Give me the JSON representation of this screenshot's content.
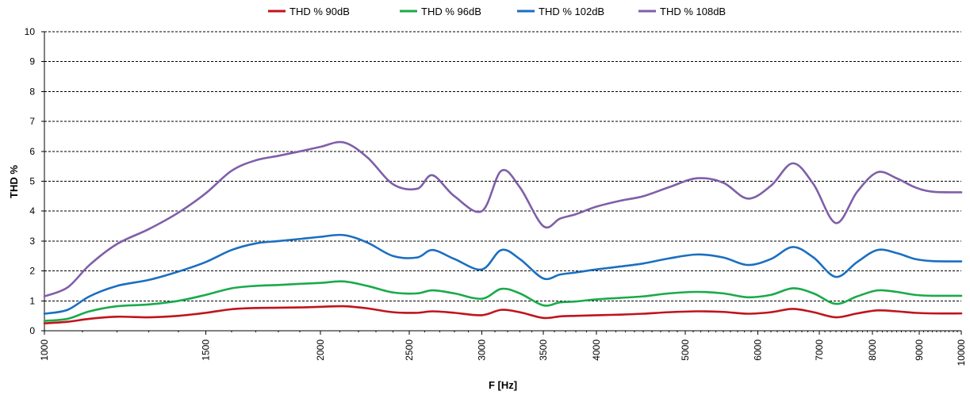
{
  "chart_data": {
    "type": "line",
    "xlabel": "F [Hz]",
    "ylabel": "THD %",
    "x_scale": "log",
    "xlim": [
      1000,
      10000
    ],
    "ylim": [
      0,
      10
    ],
    "x_ticks": [
      1000,
      1500,
      2000,
      2500,
      3000,
      3500,
      4000,
      5000,
      6000,
      7000,
      8000,
      9000,
      10000
    ],
    "x_tick_labels": [
      "1000",
      "1500",
      "2000",
      "2500",
      "3000",
      "3500",
      "4000",
      "5000",
      "6000",
      "7000",
      "8000",
      "9000",
      "10000"
    ],
    "y_ticks": [
      0,
      1,
      2,
      3,
      4,
      5,
      6,
      7,
      8,
      9,
      10
    ],
    "y_tick_labels": [
      "0",
      "1",
      "2",
      "3",
      "4",
      "5",
      "6",
      "7",
      "8",
      "9",
      "10"
    ],
    "grid": "horizontal-dashed",
    "legend_position": "top-center",
    "x": [
      1000,
      1060,
      1120,
      1200,
      1300,
      1400,
      1500,
      1600,
      1700,
      1800,
      1900,
      2000,
      2120,
      2250,
      2400,
      2550,
      2650,
      2800,
      3000,
      3150,
      3300,
      3500,
      3650,
      3800,
      4000,
      4250,
      4500,
      4800,
      5150,
      5500,
      5850,
      6200,
      6550,
      6900,
      7300,
      7700,
      8100,
      8500,
      8900,
      9300,
      10000
    ],
    "series": [
      {
        "name": "THD % 90dB",
        "color": "#c0141c",
        "values": [
          0.25,
          0.3,
          0.4,
          0.47,
          0.45,
          0.5,
          0.6,
          0.72,
          0.76,
          0.77,
          0.78,
          0.8,
          0.82,
          0.75,
          0.62,
          0.6,
          0.65,
          0.6,
          0.52,
          0.7,
          0.62,
          0.43,
          0.48,
          0.5,
          0.52,
          0.54,
          0.57,
          0.62,
          0.65,
          0.63,
          0.57,
          0.62,
          0.73,
          0.62,
          0.45,
          0.58,
          0.68,
          0.65,
          0.6,
          0.58,
          0.58
        ]
      },
      {
        "name": "THD % 96dB",
        "color": "#1aaa4a",
        "values": [
          0.33,
          0.4,
          0.65,
          0.82,
          0.88,
          1.0,
          1.2,
          1.42,
          1.5,
          1.53,
          1.57,
          1.6,
          1.65,
          1.5,
          1.28,
          1.25,
          1.35,
          1.25,
          1.07,
          1.4,
          1.25,
          0.85,
          0.95,
          0.98,
          1.05,
          1.1,
          1.15,
          1.25,
          1.3,
          1.25,
          1.12,
          1.2,
          1.42,
          1.25,
          0.9,
          1.15,
          1.35,
          1.3,
          1.2,
          1.17,
          1.17
        ]
      },
      {
        "name": "THD % 102dB",
        "color": "#1b6fc0",
        "values": [
          0.57,
          0.7,
          1.15,
          1.5,
          1.7,
          1.98,
          2.3,
          2.7,
          2.92,
          3.0,
          3.07,
          3.14,
          3.2,
          2.95,
          2.5,
          2.45,
          2.7,
          2.4,
          2.05,
          2.7,
          2.4,
          1.75,
          1.88,
          1.95,
          2.05,
          2.15,
          2.25,
          2.42,
          2.55,
          2.45,
          2.2,
          2.4,
          2.8,
          2.45,
          1.8,
          2.3,
          2.7,
          2.6,
          2.4,
          2.33,
          2.32
        ]
      },
      {
        "name": "THD % 108dB",
        "color": "#7f5fa8",
        "values": [
          1.15,
          1.45,
          2.2,
          2.9,
          3.4,
          3.95,
          4.6,
          5.35,
          5.7,
          5.85,
          6.0,
          6.15,
          6.3,
          5.8,
          4.9,
          4.75,
          5.2,
          4.5,
          4.0,
          5.35,
          4.8,
          3.5,
          3.75,
          3.9,
          4.15,
          4.35,
          4.5,
          4.8,
          5.1,
          4.95,
          4.42,
          4.85,
          5.6,
          4.9,
          3.6,
          4.65,
          5.3,
          5.1,
          4.8,
          4.65,
          4.63
        ]
      }
    ]
  }
}
